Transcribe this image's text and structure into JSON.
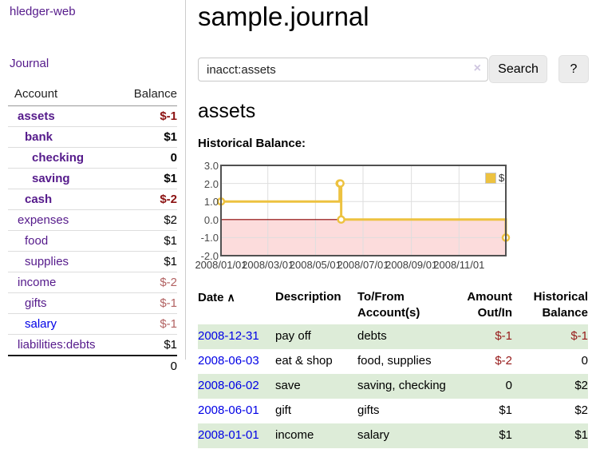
{
  "app": {
    "brand": "hledger-web"
  },
  "sidebar": {
    "journal_label": "Journal",
    "accounts": {
      "header_account": "Account",
      "header_balance": "Balance",
      "rows": [
        {
          "name": "assets",
          "indent": 1,
          "bold": true,
          "balance": "$-1",
          "balance_style": "neg-strong"
        },
        {
          "name": "bank",
          "indent": 2,
          "bold": true,
          "balance": "$1",
          "balance_style": "pos"
        },
        {
          "name": "checking",
          "indent": 3,
          "bold": true,
          "balance": "0",
          "balance_style": "pos"
        },
        {
          "name": "saving",
          "indent": 3,
          "bold": true,
          "balance": "$1",
          "balance_style": "pos"
        },
        {
          "name": "cash",
          "indent": 2,
          "bold": true,
          "balance": "$-2",
          "balance_style": "neg-strong"
        },
        {
          "name": "expenses",
          "indent": 1,
          "bold": false,
          "balance": "$2",
          "balance_style": "pos"
        },
        {
          "name": "food",
          "indent": 2,
          "bold": false,
          "balance": "$1",
          "balance_style": "pos"
        },
        {
          "name": "supplies",
          "indent": 2,
          "bold": false,
          "balance": "$1",
          "balance_style": "pos"
        },
        {
          "name": "income",
          "indent": 1,
          "bold": false,
          "balance": "$-2",
          "balance_style": "neg"
        },
        {
          "name": "gifts",
          "indent": 2,
          "bold": false,
          "balance": "$-1",
          "balance_style": "neg"
        },
        {
          "name": "salary",
          "indent": 2,
          "bold": false,
          "balance": "$-1",
          "balance_style": "neg",
          "blue": true
        },
        {
          "name": "liabilities:debts",
          "indent": 1,
          "bold": false,
          "balance": "$1",
          "balance_style": "pos"
        }
      ],
      "total": "0"
    }
  },
  "header": {
    "title": "sample.journal"
  },
  "search": {
    "value": "inacct:assets",
    "clear_icon": "×",
    "button_label": "Search",
    "help_label": "?"
  },
  "main": {
    "account_title": "assets",
    "chart_label": "Historical Balance:"
  },
  "chart_data": {
    "type": "line",
    "step": true,
    "legend": "$",
    "title": "Historical Balance",
    "line_color": "#edc240",
    "marker_fill": "#ffffff",
    "negative_fill": "#fcdcdc",
    "zero_line_color": "#8b0000",
    "grid_color": "#dedede",
    "border_color": "#515151",
    "xlim": [
      "2008-01-01",
      "2008-12-31"
    ],
    "ylim": [
      -2,
      3
    ],
    "y_ticks": [
      "3.0",
      "2.0",
      "1.0",
      "0.0",
      "-1.0",
      "-2.0"
    ],
    "x_ticks": [
      "2008/01/01",
      "2008/03/01",
      "2008/05/01",
      "2008/07/01",
      "2008/09/01",
      "2008/11/01"
    ],
    "points": [
      {
        "date": "2008-01-01",
        "value": 1
      },
      {
        "date": "2008-06-01",
        "value": 2
      },
      {
        "date": "2008-06-02",
        "value": 2
      },
      {
        "date": "2008-06-03",
        "value": 0
      },
      {
        "date": "2008-12-31",
        "value": -1
      }
    ]
  },
  "register_table": {
    "headers": [
      "Date",
      "Description",
      "To/From Account(s)",
      "Amount Out/In",
      "Historical Balance"
    ],
    "sort_icon": "∧",
    "rows": [
      {
        "date": "2008-12-31",
        "description": "pay off",
        "accounts": "debts",
        "amount": "$-1",
        "amount_neg": true,
        "balance": "$-1",
        "balance_neg": true
      },
      {
        "date": "2008-06-03",
        "description": "eat & shop",
        "accounts": "food, supplies",
        "amount": "$-2",
        "amount_neg": true,
        "balance": "0",
        "balance_neg": false
      },
      {
        "date": "2008-06-02",
        "description": "save",
        "accounts": "saving, checking",
        "amount": "0",
        "amount_neg": false,
        "balance": "$2",
        "balance_neg": false
      },
      {
        "date": "2008-06-01",
        "description": "gift",
        "accounts": "gifts",
        "amount": "$1",
        "amount_neg": false,
        "balance": "$2",
        "balance_neg": false
      },
      {
        "date": "2008-01-01",
        "description": "income",
        "accounts": "salary",
        "amount": "$1",
        "amount_neg": false,
        "balance": "$1",
        "balance_neg": false
      }
    ]
  }
}
